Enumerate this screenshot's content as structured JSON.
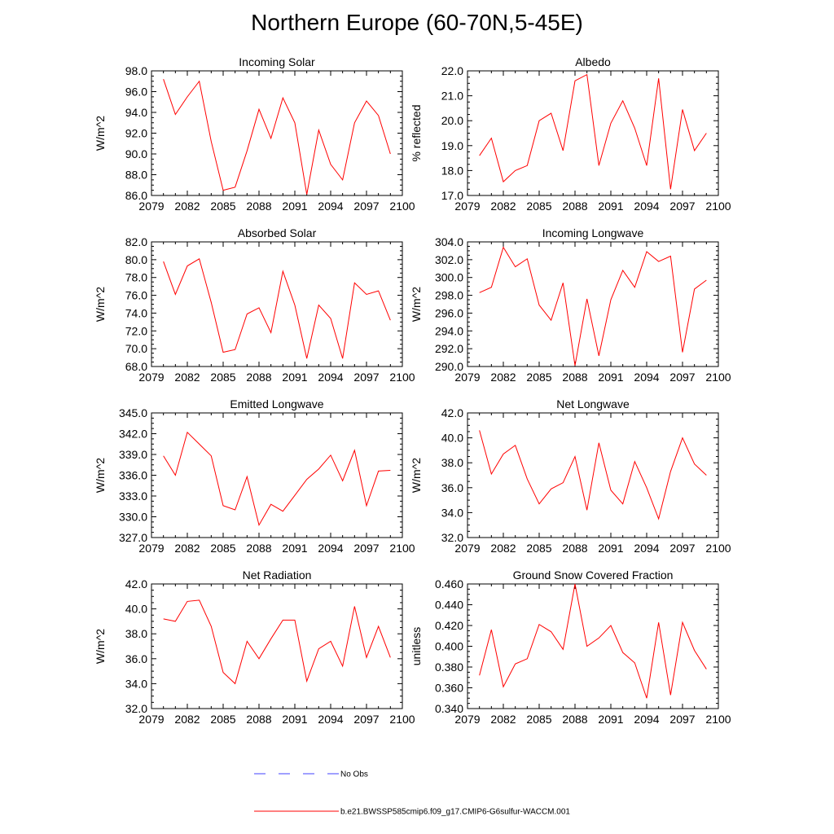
{
  "page": {
    "title": "Northern Europe (60-70N,5-45E)"
  },
  "legend": {
    "no_obs": "No Obs",
    "model": "b.e21.BWSSP585cmip6.f09_g17.CMIP6-G6sulfur-WACCM.001",
    "no_obs_color": "#4040ff",
    "model_color": "#ff0000"
  },
  "chart_data": [
    {
      "type": "line",
      "title": "Incoming Solar",
      "ylabel": "W/m^2",
      "xlim": [
        2079,
        2100
      ],
      "ylim": [
        86,
        98
      ],
      "x_ticks": [
        2079,
        2082,
        2085,
        2088,
        2091,
        2094,
        2097,
        2100
      ],
      "y_ticks": [
        86,
        88,
        90,
        92,
        94,
        96,
        98
      ],
      "y_tick_labels": [
        "86.0",
        "88.0",
        "90.0",
        "92.0",
        "94.0",
        "96.0",
        "98.0"
      ],
      "x": [
        2080,
        2081,
        2082,
        2083,
        2084,
        2085,
        2086,
        2087,
        2088,
        2089,
        2090,
        2091,
        2092,
        2093,
        2094,
        2095,
        2096,
        2097,
        2098,
        2099
      ],
      "series": [
        {
          "color": "#ff0000",
          "values": [
            97.2,
            93.8,
            95.5,
            97.0,
            91.2,
            86.5,
            86.8,
            90.3,
            94.3,
            91.5,
            95.4,
            93.0,
            86.1,
            92.3,
            89.0,
            87.5,
            93.0,
            95.1,
            93.7,
            90.0
          ]
        }
      ]
    },
    {
      "type": "line",
      "title": "Albedo",
      "ylabel": "% reflected",
      "xlim": [
        2079,
        2100
      ],
      "ylim": [
        17,
        22
      ],
      "x_ticks": [
        2079,
        2082,
        2085,
        2088,
        2091,
        2094,
        2097,
        2100
      ],
      "y_ticks": [
        17,
        18,
        19,
        20,
        21,
        22
      ],
      "y_tick_labels": [
        "17.0",
        "18.0",
        "19.0",
        "20.0",
        "21.0",
        "22.0"
      ],
      "x": [
        2080,
        2081,
        2082,
        2083,
        2084,
        2085,
        2086,
        2087,
        2088,
        2089,
        2090,
        2091,
        2092,
        2093,
        2094,
        2095,
        2096,
        2097,
        2098,
        2099
      ],
      "series": [
        {
          "color": "#ff0000",
          "values": [
            18.6,
            19.3,
            17.55,
            18.0,
            18.2,
            20.0,
            20.3,
            18.8,
            21.6,
            21.85,
            18.2,
            19.9,
            20.8,
            19.7,
            18.2,
            21.7,
            17.25,
            20.45,
            18.8,
            19.5
          ]
        }
      ]
    },
    {
      "type": "line",
      "title": "Absorbed Solar",
      "ylabel": "W/m^2",
      "xlim": [
        2079,
        2100
      ],
      "ylim": [
        68,
        82
      ],
      "x_ticks": [
        2079,
        2082,
        2085,
        2088,
        2091,
        2094,
        2097,
        2100
      ],
      "y_ticks": [
        68,
        70,
        72,
        74,
        76,
        78,
        80,
        82
      ],
      "y_tick_labels": [
        "68.0",
        "70.0",
        "72.0",
        "74.0",
        "76.0",
        "78.0",
        "80.0",
        "82.0"
      ],
      "x": [
        2080,
        2081,
        2082,
        2083,
        2084,
        2085,
        2086,
        2087,
        2088,
        2089,
        2090,
        2091,
        2092,
        2093,
        2094,
        2095,
        2096,
        2097,
        2098,
        2099
      ],
      "series": [
        {
          "color": "#ff0000",
          "values": [
            79.8,
            76.1,
            79.3,
            80.1,
            75.2,
            69.6,
            69.9,
            73.9,
            74.6,
            71.8,
            78.7,
            74.9,
            68.9,
            74.9,
            73.4,
            68.9,
            77.4,
            76.1,
            76.5,
            73.2
          ]
        }
      ]
    },
    {
      "type": "line",
      "title": "Incoming Longwave",
      "ylabel": "W/m^2",
      "xlim": [
        2079,
        2100
      ],
      "ylim": [
        290,
        304
      ],
      "x_ticks": [
        2079,
        2082,
        2085,
        2088,
        2091,
        2094,
        2097,
        2100
      ],
      "y_ticks": [
        290,
        292,
        294,
        296,
        298,
        300,
        302,
        304
      ],
      "y_tick_labels": [
        "290.0",
        "292.0",
        "294.0",
        "296.0",
        "298.0",
        "300.0",
        "302.0",
        "304.0"
      ],
      "x": [
        2080,
        2081,
        2082,
        2083,
        2084,
        2085,
        2086,
        2087,
        2088,
        2089,
        2090,
        2091,
        2092,
        2093,
        2094,
        2095,
        2096,
        2097,
        2098,
        2099
      ],
      "series": [
        {
          "color": "#ff0000",
          "values": [
            298.3,
            298.9,
            303.4,
            301.2,
            302.1,
            296.9,
            295.2,
            299.4,
            290.1,
            297.6,
            291.2,
            297.5,
            300.8,
            298.9,
            302.9,
            301.8,
            302.4,
            291.6,
            298.7,
            299.7
          ]
        }
      ]
    },
    {
      "type": "line",
      "title": "Emitted Longwave",
      "ylabel": "W/m^2",
      "xlim": [
        2079,
        2100
      ],
      "ylim": [
        327,
        345
      ],
      "x_ticks": [
        2079,
        2082,
        2085,
        2088,
        2091,
        2094,
        2097,
        2100
      ],
      "y_ticks": [
        327,
        330,
        333,
        336,
        339,
        342,
        345
      ],
      "y_tick_labels": [
        "327.0",
        "330.0",
        "333.0",
        "336.0",
        "339.0",
        "342.0",
        "345.0"
      ],
      "x": [
        2080,
        2081,
        2082,
        2083,
        2084,
        2085,
        2086,
        2087,
        2088,
        2089,
        2090,
        2091,
        2092,
        2093,
        2094,
        2095,
        2096,
        2097,
        2098,
        2099
      ],
      "series": [
        {
          "color": "#ff0000",
          "values": [
            338.8,
            336.0,
            342.2,
            340.5,
            338.8,
            331.6,
            331.0,
            335.8,
            328.8,
            331.8,
            330.8,
            333.1,
            335.4,
            336.9,
            338.9,
            335.2,
            339.6,
            331.6,
            336.6,
            336.7
          ]
        }
      ]
    },
    {
      "type": "line",
      "title": "Net Longwave",
      "ylabel": "W/m^2",
      "xlim": [
        2079,
        2100
      ],
      "ylim": [
        32,
        42
      ],
      "x_ticks": [
        2079,
        2082,
        2085,
        2088,
        2091,
        2094,
        2097,
        2100
      ],
      "y_ticks": [
        32,
        34,
        36,
        38,
        40,
        42
      ],
      "y_tick_labels": [
        "32.0",
        "34.0",
        "36.0",
        "38.0",
        "40.0",
        "42.0"
      ],
      "x": [
        2080,
        2081,
        2082,
        2083,
        2084,
        2085,
        2086,
        2087,
        2088,
        2089,
        2090,
        2091,
        2092,
        2093,
        2094,
        2095,
        2096,
        2097,
        2098,
        2099
      ],
      "series": [
        {
          "color": "#ff0000",
          "values": [
            40.6,
            37.1,
            38.7,
            39.4,
            36.7,
            34.7,
            35.9,
            36.4,
            38.5,
            34.2,
            39.6,
            35.8,
            34.7,
            38.1,
            36.0,
            33.5,
            37.3,
            40.0,
            37.9,
            37.0
          ]
        }
      ]
    },
    {
      "type": "line",
      "title": "Net Radiation",
      "ylabel": "W/m^2",
      "xlim": [
        2079,
        2100
      ],
      "ylim": [
        32,
        42
      ],
      "x_ticks": [
        2079,
        2082,
        2085,
        2088,
        2091,
        2094,
        2097,
        2100
      ],
      "y_ticks": [
        32,
        34,
        36,
        38,
        40,
        42
      ],
      "y_tick_labels": [
        "32.0",
        "34.0",
        "36.0",
        "38.0",
        "40.0",
        "42.0"
      ],
      "x": [
        2080,
        2081,
        2082,
        2083,
        2084,
        2085,
        2086,
        2087,
        2088,
        2089,
        2090,
        2091,
        2092,
        2093,
        2094,
        2095,
        2096,
        2097,
        2098,
        2099
      ],
      "series": [
        {
          "color": "#ff0000",
          "values": [
            39.2,
            39.0,
            40.6,
            40.7,
            38.6,
            34.9,
            34.0,
            37.4,
            36.0,
            37.6,
            39.1,
            39.1,
            34.2,
            36.8,
            37.4,
            35.4,
            40.2,
            36.1,
            38.6,
            36.1
          ]
        }
      ]
    },
    {
      "type": "line",
      "title": "Ground Snow Covered Fraction",
      "ylabel": "unitless",
      "xlim": [
        2079,
        2100
      ],
      "ylim": [
        0.34,
        0.46
      ],
      "x_ticks": [
        2079,
        2082,
        2085,
        2088,
        2091,
        2094,
        2097,
        2100
      ],
      "y_ticks": [
        0.34,
        0.36,
        0.38,
        0.4,
        0.42,
        0.44,
        0.46
      ],
      "y_tick_labels": [
        "0.340",
        "0.360",
        "0.380",
        "0.400",
        "0.420",
        "0.440",
        "0.460"
      ],
      "x": [
        2080,
        2081,
        2082,
        2083,
        2084,
        2085,
        2086,
        2087,
        2088,
        2089,
        2090,
        2091,
        2092,
        2093,
        2094,
        2095,
        2096,
        2097,
        2098,
        2099
      ],
      "series": [
        {
          "color": "#ff0000",
          "values": [
            0.372,
            0.416,
            0.361,
            0.383,
            0.388,
            0.421,
            0.414,
            0.397,
            0.46,
            0.4,
            0.408,
            0.42,
            0.394,
            0.384,
            0.35,
            0.423,
            0.353,
            0.423,
            0.396,
            0.378
          ]
        }
      ]
    }
  ]
}
